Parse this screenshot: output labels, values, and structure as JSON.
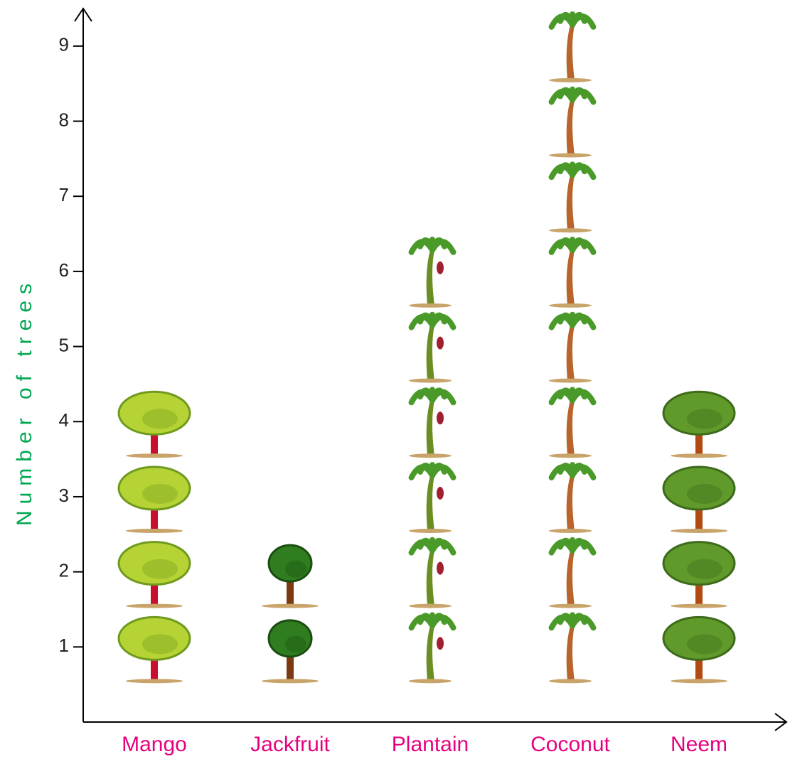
{
  "chart_data": {
    "type": "pictograph",
    "y_label": "Number of trees",
    "categories": [
      "Mango tree",
      "Jackfruit tree",
      "Plantain tree",
      "Coconut tree",
      "Neem tree"
    ],
    "values": [
      4,
      2,
      6,
      9,
      4
    ],
    "ylim": [
      0,
      9.5
    ],
    "yticks": [
      1,
      2,
      3,
      4,
      5,
      6,
      7,
      8,
      9
    ],
    "label_color": "#e6007e",
    "axis_label_color": "#00a651"
  }
}
